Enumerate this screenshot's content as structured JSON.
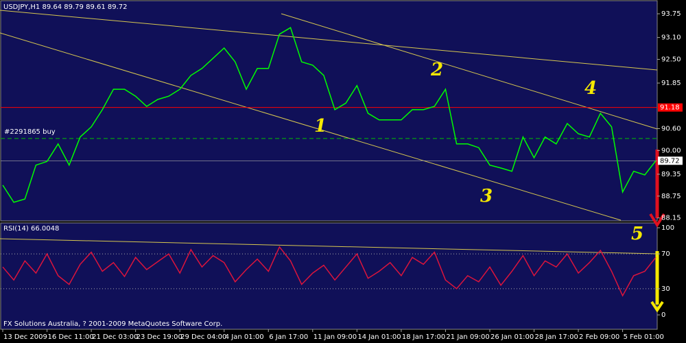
{
  "chart_data": [
    {
      "type": "line",
      "title": "USDJPY,H1  89.64 89.79 89.61 89.72",
      "categories": [
        "13 Dec 2009",
        null,
        null,
        null,
        "16 Dec 11:00",
        null,
        null,
        null,
        "21 Dec 03:00",
        null,
        null,
        null,
        "23 Dec 19:00",
        null,
        null,
        null,
        "29 Dec 04:00",
        null,
        null,
        null,
        "4 Jan 01:00",
        null,
        null,
        null,
        "6 Jan 17:00",
        null,
        null,
        null,
        "11 Jan 09:00",
        null,
        null,
        null,
        "14 Jan 01:00",
        null,
        null,
        null,
        "18 Jan 17:00",
        null,
        null,
        null,
        "21 Jan 09:00",
        null,
        null,
        null,
        "26 Jan 01:00",
        null,
        null,
        null,
        "28 Jan 17:00",
        null,
        null,
        null,
        "2 Feb 09:00",
        null,
        null,
        null,
        "5 Feb 01:00",
        null,
        null,
        null
      ],
      "series": [
        {
          "name": "USDJPY",
          "color": "#00ff00",
          "values": [
            89.05,
            88.58,
            88.67,
            89.6,
            89.7,
            90.18,
            89.6,
            90.37,
            90.65,
            91.12,
            91.68,
            91.68,
            91.49,
            91.21,
            91.4,
            91.49,
            91.68,
            92.06,
            92.25,
            92.53,
            92.81,
            92.43,
            91.68,
            92.25,
            92.25,
            93.19,
            93.37,
            92.43,
            92.34,
            92.06,
            91.12,
            91.3,
            91.78,
            91.02,
            90.84,
            90.84,
            90.84,
            91.12,
            91.12,
            91.21,
            91.68,
            90.18,
            90.18,
            90.08,
            89.6,
            89.52,
            89.43,
            90.37,
            89.8,
            90.37,
            90.18,
            90.74,
            90.46,
            90.37,
            91.02,
            90.65,
            88.86,
            89.43,
            89.33,
            89.72
          ]
        }
      ],
      "ylim": [
        88.07,
        94.09
      ],
      "yticks": [
        93.75,
        {
          "value": 93.1,
          "label": "93.10"
        },
        {
          "value": 92.5,
          "label": "92.50"
        },
        91.85,
        {
          "value": 90.6,
          "label": "90.60"
        },
        {
          "value": 90,
          "label": "90.00"
        },
        89.35,
        88.75,
        88.15
      ],
      "alert_level": 91.18,
      "alert_color": "#ff0000",
      "last_price": 89.72,
      "order": {
        "label": "#2291865 buy",
        "value": 90.33,
        "color": "#00c000"
      },
      "annotations": [
        "1",
        "2",
        "3",
        "4",
        "5"
      ]
    },
    {
      "type": "line",
      "title": "RSI(14) 66.0048",
      "series": [
        {
          "name": "RSI(14)",
          "color": "#dc143c",
          "values": [
            55,
            40,
            62,
            48,
            70,
            45,
            35,
            58,
            72,
            50,
            60,
            44,
            66,
            52,
            61,
            70,
            48,
            75,
            55,
            68,
            60,
            38,
            52,
            64,
            50,
            78,
            62,
            35,
            48,
            57,
            40,
            55,
            70,
            42,
            50,
            60,
            45,
            66,
            58,
            72,
            40,
            30,
            45,
            38,
            55,
            34,
            50,
            68,
            45,
            62,
            55,
            70,
            48,
            60,
            74,
            50,
            22,
            45,
            50,
            66.0048
          ]
        }
      ],
      "ylim": [
        -16.5,
        105.5
      ],
      "yticks": [
        100,
        70,
        30,
        0
      ],
      "footer": "FX Solutions Australia, ? 2001-2009 MetaQuotes Software Corp."
    }
  ]
}
